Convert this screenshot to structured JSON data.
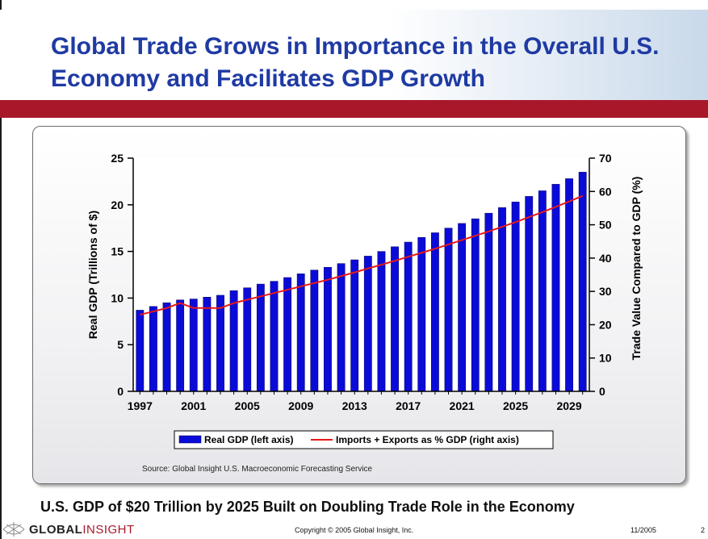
{
  "slide": {
    "title": "Global Trade Grows in Importance in the Overall U.S. Economy and Facilitates GDP Growth",
    "subtitle": "U.S. GDP of $20 Trillion by 2025 Built on Doubling Trade Role in the Economy",
    "source": "Source: Global Insight U.S. Macroeconomic Forecasting  Service",
    "footer": {
      "logo_part1": "GLOBAL",
      "logo_part2": "INSIGHT",
      "copyright": "Copyright © 2005 Global Insight, Inc.",
      "date": "11/2005",
      "page": "2"
    },
    "colors": {
      "title": "#1f3aa3",
      "band": "#a8182a"
    }
  },
  "chart_data": {
    "type": "bar",
    "x": [
      1997,
      1998,
      1999,
      2000,
      2001,
      2002,
      2003,
      2004,
      2005,
      2006,
      2007,
      2008,
      2009,
      2010,
      2011,
      2012,
      2013,
      2014,
      2015,
      2016,
      2017,
      2018,
      2019,
      2020,
      2021,
      2022,
      2023,
      2024,
      2025,
      2026,
      2027,
      2028,
      2029,
      2030
    ],
    "xticks": [
      "1997",
      "2001",
      "2005",
      "2009",
      "2013",
      "2017",
      "2021",
      "2025",
      "2029"
    ],
    "ylabel": "Real GDP (Trillions of $)",
    "y2label": "Trade Value Compared to GDP (%)",
    "ylim": [
      0,
      25
    ],
    "y2lim": [
      0,
      70
    ],
    "yticks": [
      "0",
      "5",
      "10",
      "15",
      "20",
      "25"
    ],
    "y2ticks": [
      "0",
      "10",
      "20",
      "30",
      "40",
      "50",
      "60",
      "70"
    ],
    "series": [
      {
        "name": "Real GDP (left axis)",
        "type": "bar",
        "axis": "left",
        "color": "#0b0bd8",
        "values": [
          8.7,
          9.1,
          9.5,
          9.8,
          9.9,
          10.1,
          10.3,
          10.8,
          11.1,
          11.5,
          11.8,
          12.2,
          12.6,
          13.0,
          13.3,
          13.7,
          14.1,
          14.5,
          15.0,
          15.5,
          16.0,
          16.5,
          17.0,
          17.5,
          18.0,
          18.5,
          19.1,
          19.7,
          20.3,
          20.9,
          21.5,
          22.2,
          22.8,
          23.5
        ]
      },
      {
        "name": "Imports + Exports as % GDP (right axis)",
        "type": "line",
        "axis": "right",
        "color": "#e81818",
        "values": [
          23.0,
          24.0,
          25.0,
          26.5,
          25.0,
          25.0,
          25.0,
          26.5,
          27.5,
          28.5,
          29.5,
          30.5,
          31.5,
          32.5,
          33.5,
          34.6,
          35.7,
          36.9,
          38.0,
          39.2,
          40.4,
          41.6,
          42.8,
          44.1,
          45.4,
          46.7,
          48.0,
          49.4,
          50.8,
          52.3,
          53.8,
          55.4,
          57.0,
          58.7
        ]
      }
    ],
    "legend_position": "bottom",
    "grid": false
  }
}
